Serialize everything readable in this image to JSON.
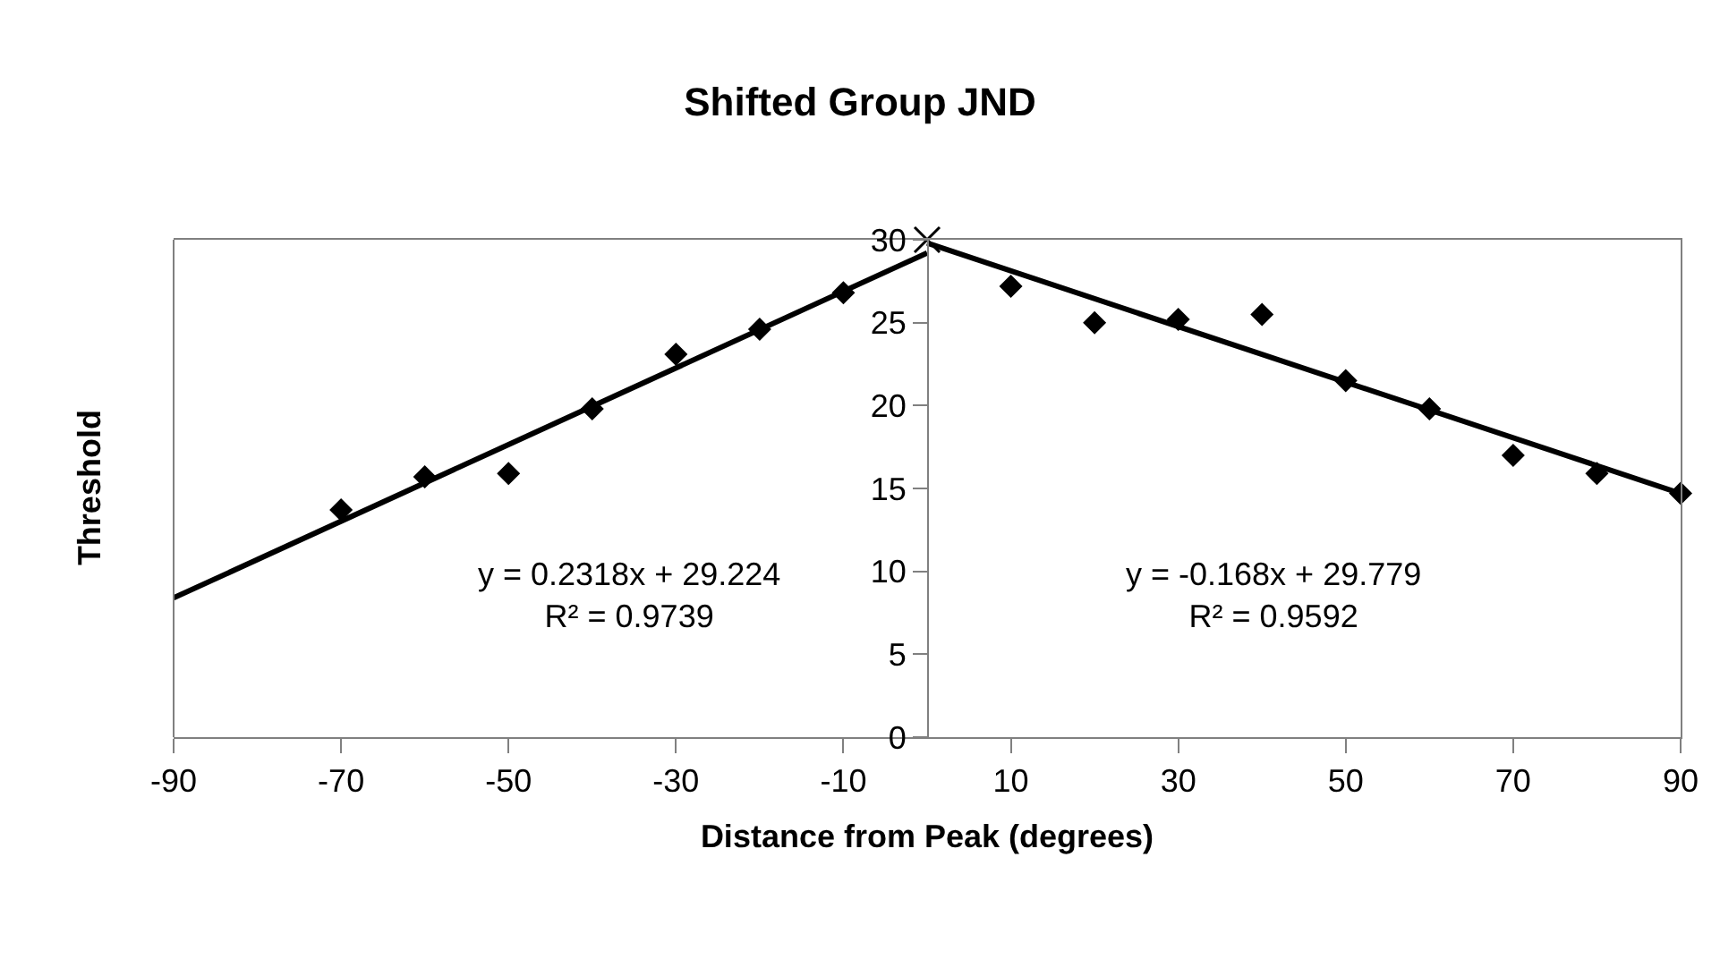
{
  "chart_data": {
    "type": "scatter",
    "title": "Shifted Group JND",
    "xlabel": "Distance from Peak (degrees)",
    "ylabel": "Threshold",
    "xlim": [
      -90,
      90
    ],
    "xticks": [
      -90,
      -70,
      -50,
      -30,
      -10,
      10,
      30,
      50,
      70,
      90
    ],
    "ylim": [
      0,
      30
    ],
    "yticks": [
      0,
      5,
      10,
      15,
      20,
      25,
      30
    ],
    "marker": "diamond",
    "series": [
      {
        "color": "#000000",
        "x": [
          -70,
          -60,
          -50,
          -40,
          -30,
          -20,
          -10,
          10,
          20,
          30,
          40,
          50,
          60,
          70,
          80,
          90
        ],
        "values": [
          13.7,
          15.7,
          15.9,
          19.8,
          23.1,
          24.6,
          26.8,
          27.2,
          25.0,
          25.2,
          25.5,
          21.5,
          19.8,
          17.0,
          15.9,
          14.7
        ]
      },
      {
        "marker": "cross",
        "color": "#000000",
        "x": [
          0
        ],
        "values": [
          30
        ]
      },
      {
        "type": "line",
        "marker": "none",
        "line_style": "solid",
        "color": "#000000",
        "x": [
          -90,
          0
        ],
        "values": [
          8.4,
          29.2
        ]
      },
      {
        "type": "line",
        "marker": "none",
        "line_style": "solid",
        "color": "#000000",
        "x": [
          0,
          90
        ],
        "values": [
          29.8,
          14.7
        ]
      }
    ],
    "annotations": [
      "y = 0.2318x + 29.224\nR² = 0.9739",
      "y = -0.168x + 29.779\nR² = 0.9592"
    ]
  }
}
